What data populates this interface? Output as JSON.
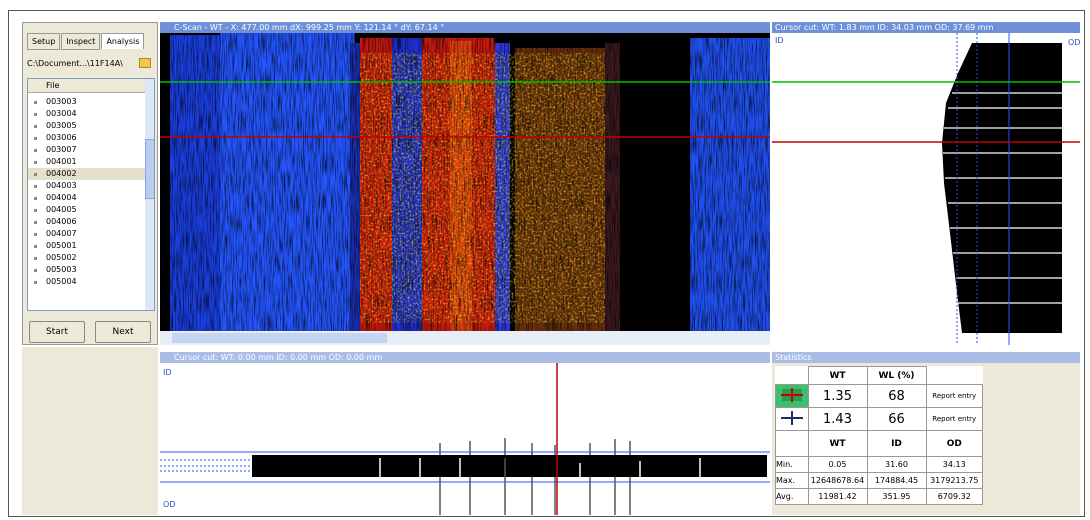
{
  "tabs": [
    "Setup",
    "Inspect",
    "Analysis"
  ],
  "path": "C:\\Document...\\11F14A\\",
  "file_list": {
    "header": "File",
    "items": [
      "003003",
      "003004",
      "003005",
      "003006",
      "003007",
      "004001",
      "004002",
      "004003",
      "004004",
      "004005",
      "004006",
      "004007",
      "005001",
      "005002",
      "005003",
      "005004"
    ]
  },
  "buttons": [
    "Start",
    "Next"
  ],
  "cscan": {
    "title": "C-Scan - WT - X: 477.00 mm dX: 999.25 mm  Y: 121.14 ° dY: 67.14 °"
  },
  "cursor_cut_right": {
    "title": "Cursor cut: WT: 1.83 mm ID: 34.03 mm OD: 37.69 mm",
    "id_label": "ID",
    "od_label": "OD"
  },
  "cursor_cut_bottom": {
    "title": "Cursor cut: WT: 0.00 mm ID: 0.00 mm OD: 0.00 mm",
    "id_label": "ID",
    "od_label": "OD"
  },
  "statistics": {
    "title": "Statistics",
    "header1": [
      "WT",
      "WL (%)"
    ],
    "cursor_rows": [
      {
        "values": [
          "1.35",
          "68"
        ],
        "action": "Report entry"
      },
      {
        "values": [
          "1.43",
          "66"
        ],
        "action": "Report entry"
      }
    ],
    "header2": [
      "WT",
      "ID",
      "OD"
    ],
    "rows": [
      {
        "label": "Min.",
        "values": [
          "0.05",
          "31.60",
          "34.13"
        ]
      },
      {
        "label": "Max.",
        "values": [
          "12648678.64",
          "174884.45",
          "3179213.75"
        ]
      },
      {
        "label": "Avg.",
        "values": [
          "11981.42",
          "351.95",
          "6709.32"
        ]
      }
    ]
  }
}
